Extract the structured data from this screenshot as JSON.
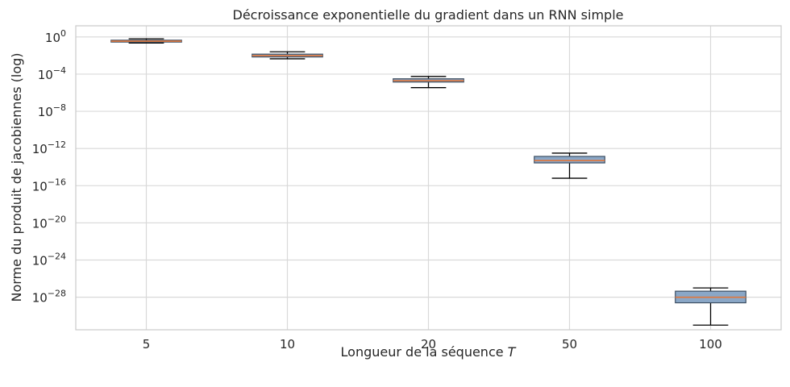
{
  "chart_data": {
    "type": "box",
    "title": "Décroissance exponentielle du gradient dans un RNN simple",
    "xlabel": "Longueur de la séquence",
    "xlabel_var": "T",
    "ylabel": "Norme du produit de jacobiennes (log)",
    "yscale": "log",
    "ylim_log10": [
      -31.5,
      1.2
    ],
    "yticks": [
      {
        "base": "10",
        "exp": "0",
        "log10": 0
      },
      {
        "base": "10",
        "exp": "−4",
        "log10": -4
      },
      {
        "base": "10",
        "exp": "−8",
        "log10": -8
      },
      {
        "base": "10",
        "exp": "−12",
        "log10": -12
      },
      {
        "base": "10",
        "exp": "−16",
        "log10": -16
      },
      {
        "base": "10",
        "exp": "−20",
        "log10": -20
      },
      {
        "base": "10",
        "exp": "−24",
        "log10": -24
      },
      {
        "base": "10",
        "exp": "−28",
        "log10": -28
      }
    ],
    "categories": [
      "5",
      "10",
      "20",
      "50",
      "100"
    ],
    "boxes_log10": [
      {
        "min": -0.65,
        "q1": -0.55,
        "median": -0.45,
        "q3": -0.35,
        "max": -0.2
      },
      {
        "min": -2.35,
        "q1": -2.15,
        "median": -2.0,
        "q3": -1.85,
        "max": -1.6
      },
      {
        "min": -5.45,
        "q1": -4.85,
        "median": -4.7,
        "q3": -4.5,
        "max": -4.25
      },
      {
        "min": -15.2,
        "q1": -13.55,
        "median": -13.3,
        "q3": -12.85,
        "max": -12.5
      },
      {
        "min": -31.0,
        "q1": -28.6,
        "median": -28.0,
        "q3": -27.35,
        "max": -27.0
      }
    ],
    "grid": true,
    "box_color": "#8aa7c7",
    "median_color": "#e0773c",
    "box_edge_color": "#3d4f63"
  }
}
